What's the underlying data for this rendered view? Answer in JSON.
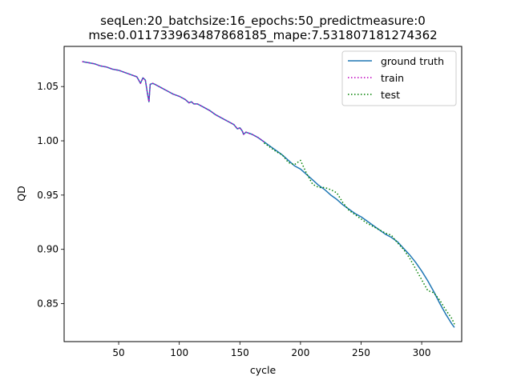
{
  "chart_data": {
    "type": "line",
    "title": "seqLen:20_batchsize:16_epochs:50_predictmeasure:0",
    "subtitle": "mse:0.011733963487868185_mape:7.531807181274362",
    "xlabel": "cycle",
    "ylabel": "QD",
    "xlim": [
      5,
      333
    ],
    "ylim": [
      0.815,
      1.087
    ],
    "xticks": [
      50,
      100,
      150,
      200,
      250,
      300
    ],
    "yticks": [
      0.85,
      0.9,
      0.95,
      1.0,
      1.05
    ],
    "ytick_labels": [
      "0.85",
      "0.90",
      "0.95",
      "1.00",
      "1.05"
    ],
    "grid": false,
    "legend_position": "top-right",
    "series": [
      {
        "name": "ground truth",
        "color": "#1f77b4",
        "style": "solid",
        "x": [
          20,
          25,
          30,
          35,
          40,
          45,
          50,
          55,
          60,
          65,
          68,
          70,
          72,
          74,
          75,
          76,
          78,
          80,
          85,
          90,
          95,
          100,
          105,
          108,
          110,
          112,
          115,
          120,
          125,
          130,
          135,
          140,
          145,
          148,
          150,
          152,
          153,
          155,
          160,
          165,
          170,
          175,
          180,
          185,
          190,
          195,
          200,
          205,
          210,
          215,
          220,
          225,
          230,
          235,
          240,
          245,
          250,
          255,
          260,
          265,
          270,
          275,
          280,
          285,
          290,
          295,
          300,
          305,
          310,
          315,
          320,
          325,
          327
        ],
        "y": [
          1.073,
          1.072,
          1.071,
          1.069,
          1.068,
          1.066,
          1.065,
          1.063,
          1.061,
          1.059,
          1.053,
          1.058,
          1.056,
          1.042,
          1.036,
          1.052,
          1.053,
          1.052,
          1.049,
          1.046,
          1.043,
          1.041,
          1.038,
          1.035,
          1.036,
          1.034,
          1.034,
          1.031,
          1.028,
          1.024,
          1.021,
          1.018,
          1.015,
          1.011,
          1.012,
          1.009,
          1.006,
          1.008,
          1.006,
          1.003,
          0.999,
          0.995,
          0.991,
          0.987,
          0.982,
          0.977,
          0.974,
          0.969,
          0.964,
          0.959,
          0.955,
          0.95,
          0.946,
          0.941,
          0.937,
          0.933,
          0.93,
          0.926,
          0.922,
          0.918,
          0.914,
          0.911,
          0.907,
          0.901,
          0.895,
          0.888,
          0.88,
          0.871,
          0.861,
          0.85,
          0.84,
          0.831,
          0.828
        ]
      },
      {
        "name": "train",
        "color": "#bf00bf",
        "style": "dotted",
        "x": [
          20,
          25,
          30,
          35,
          40,
          45,
          50,
          55,
          60,
          65,
          68,
          70,
          72,
          74,
          75,
          76,
          78,
          80,
          85,
          90,
          95,
          100,
          105,
          108,
          110,
          112,
          115,
          120,
          125,
          130,
          135,
          140,
          145,
          148,
          150,
          152,
          153,
          155,
          160,
          165,
          170
        ],
        "y": [
          1.073,
          1.072,
          1.071,
          1.069,
          1.068,
          1.066,
          1.065,
          1.063,
          1.061,
          1.059,
          1.053,
          1.058,
          1.056,
          1.042,
          1.036,
          1.052,
          1.053,
          1.052,
          1.049,
          1.046,
          1.043,
          1.041,
          1.038,
          1.035,
          1.036,
          1.034,
          1.034,
          1.031,
          1.028,
          1.024,
          1.021,
          1.018,
          1.015,
          1.011,
          1.012,
          1.009,
          1.006,
          1.008,
          1.006,
          1.003,
          0.999
        ]
      },
      {
        "name": "test",
        "color": "#008000",
        "style": "dotted",
        "x": [
          170,
          175,
          180,
          185,
          190,
          195,
          200,
          205,
          210,
          215,
          220,
          225,
          230,
          235,
          240,
          245,
          250,
          255,
          260,
          265,
          270,
          275,
          280,
          285,
          290,
          295,
          300,
          305,
          310,
          315,
          320,
          325,
          327
        ],
        "y": [
          0.998,
          0.994,
          0.99,
          0.987,
          0.98,
          0.978,
          0.982,
          0.97,
          0.96,
          0.957,
          0.957,
          0.955,
          0.952,
          0.943,
          0.936,
          0.932,
          0.928,
          0.924,
          0.921,
          0.918,
          0.915,
          0.913,
          0.906,
          0.9,
          0.892,
          0.882,
          0.872,
          0.862,
          0.86,
          0.853,
          0.844,
          0.836,
          0.831
        ]
      }
    ]
  }
}
